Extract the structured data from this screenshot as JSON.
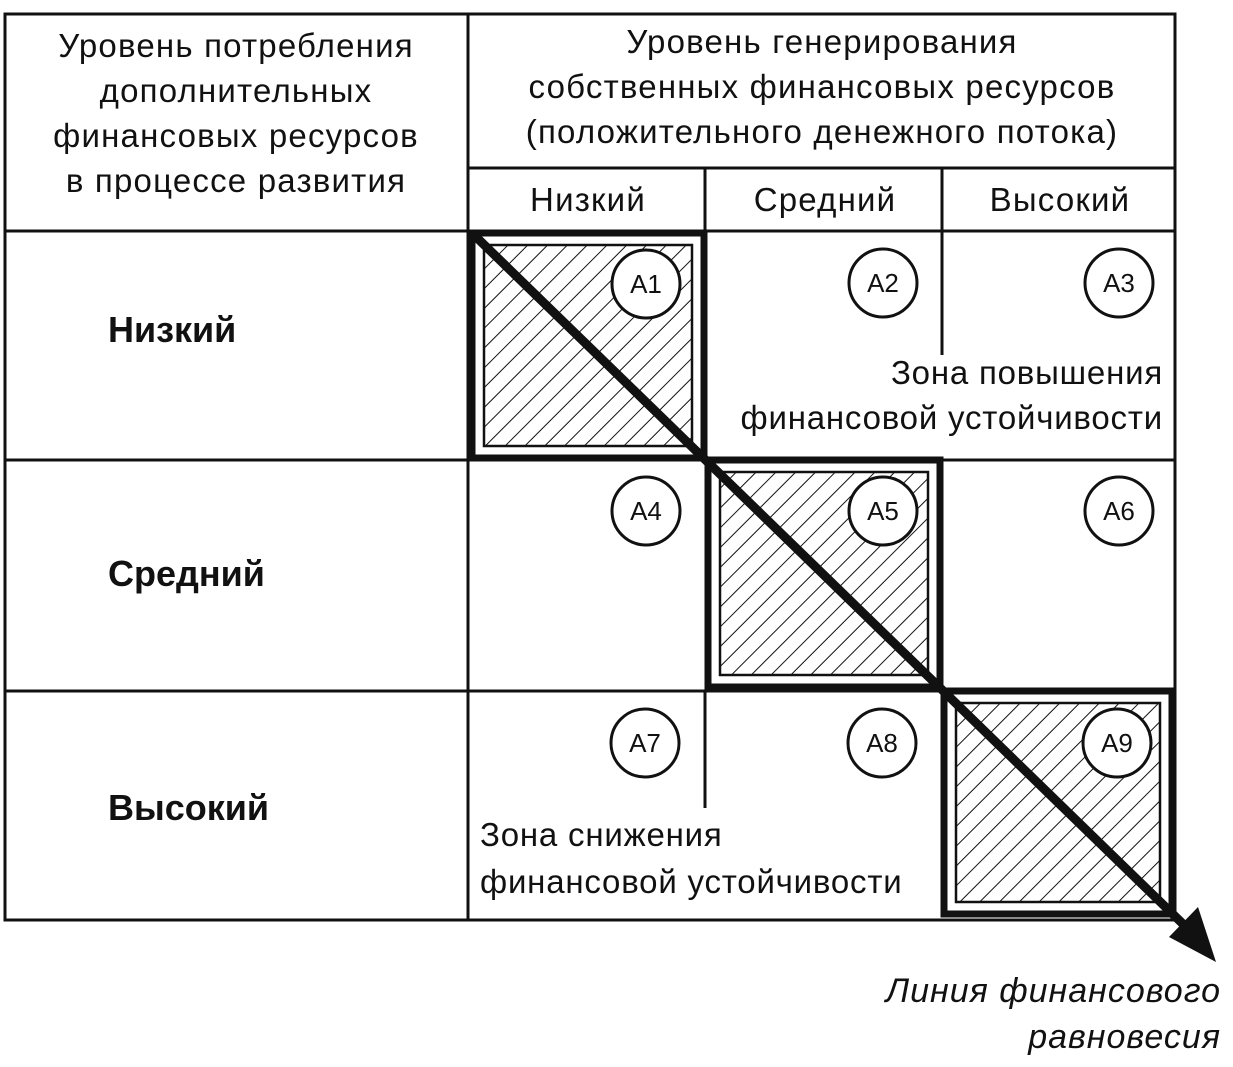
{
  "row_header": {
    "lines": [
      "Уровень потребления",
      "дополнительных",
      "финансовых ресурсов",
      "в процессе развития"
    ]
  },
  "column_header": {
    "lines": [
      "Уровень генерирования",
      "собственных финансовых ресурсов",
      "(положительного денежного потока)"
    ]
  },
  "columns": [
    "Низкий",
    "Средний",
    "Высокий"
  ],
  "rows": [
    "Низкий",
    "Средний",
    "Высокий"
  ],
  "cells": [
    "А1",
    "А2",
    "А3",
    "А4",
    "А5",
    "А6",
    "А7",
    "А8",
    "А9"
  ],
  "zone_up": [
    "Зона повышения",
    "финансовой устойчивости"
  ],
  "zone_down": [
    "Зона снижения",
    "финансовой устойчивости"
  ],
  "equilibrium_line": [
    "Линия финансового",
    "равновесия"
  ]
}
